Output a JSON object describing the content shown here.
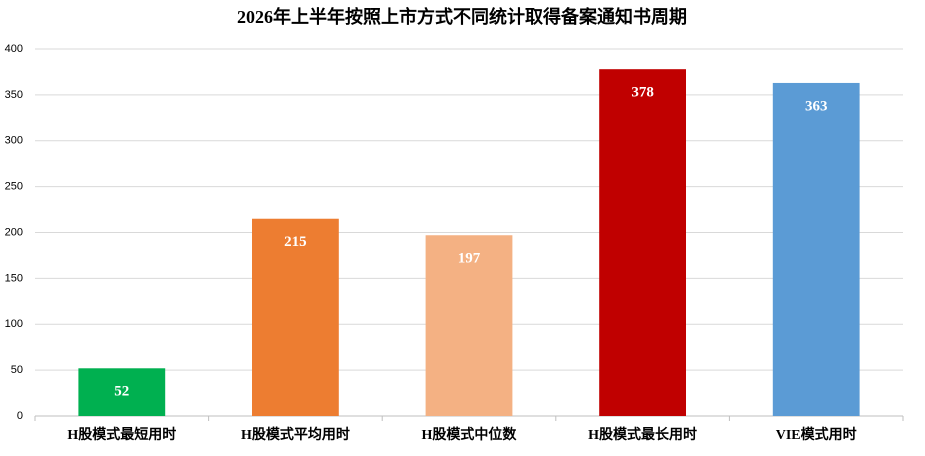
{
  "chart_data": {
    "type": "bar",
    "title": "2026年上半年按照上市方式不同统计取得备案通知书周期",
    "categories": [
      "H股模式最短用时",
      "H股模式平均用时",
      "H股模式中位数",
      "H股模式最长用时",
      "VIE模式用时"
    ],
    "values": [
      52,
      215,
      197,
      378,
      363
    ],
    "colors": [
      "#00b050",
      "#ed7d31",
      "#f4b183",
      "#c00000",
      "#5b9bd5"
    ],
    "ylim": [
      0,
      400
    ],
    "yticks": [
      0,
      50,
      100,
      150,
      200,
      250,
      300,
      350,
      400
    ],
    "grid": true
  }
}
